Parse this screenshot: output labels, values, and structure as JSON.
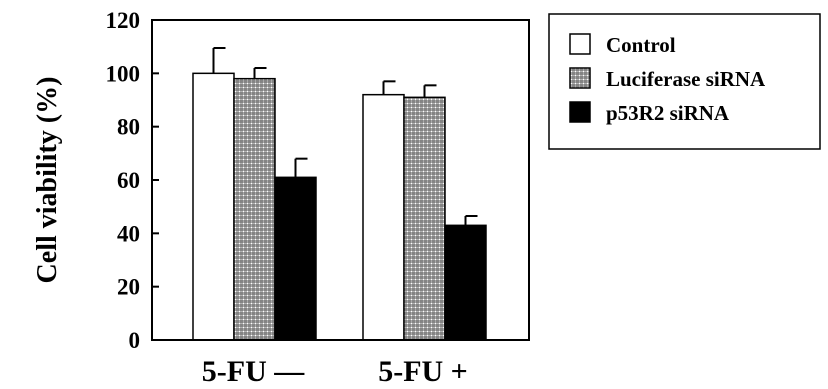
{
  "chart_data": {
    "type": "bar",
    "title": "",
    "xlabel": "",
    "ylabel": "Cell viability (%)",
    "ylim": [
      0,
      120
    ],
    "yticks": [
      "0",
      "20",
      "40",
      "60",
      "80",
      "100",
      "120"
    ],
    "categories": [
      "5-FU —",
      "5-FU +"
    ],
    "series": [
      {
        "name": "Control",
        "values": [
          100,
          92
        ],
        "errors": [
          9.5,
          5
        ],
        "fill": "white"
      },
      {
        "name": "Luciferase siRNA",
        "values": [
          98,
          91
        ],
        "errors": [
          4,
          4.5
        ],
        "fill": "hatched"
      },
      {
        "name": "p53R2 siRNA",
        "values": [
          61,
          43
        ],
        "errors": [
          7,
          3.5
        ],
        "fill": "black"
      }
    ],
    "legend_position": "top-right",
    "grid": false
  }
}
